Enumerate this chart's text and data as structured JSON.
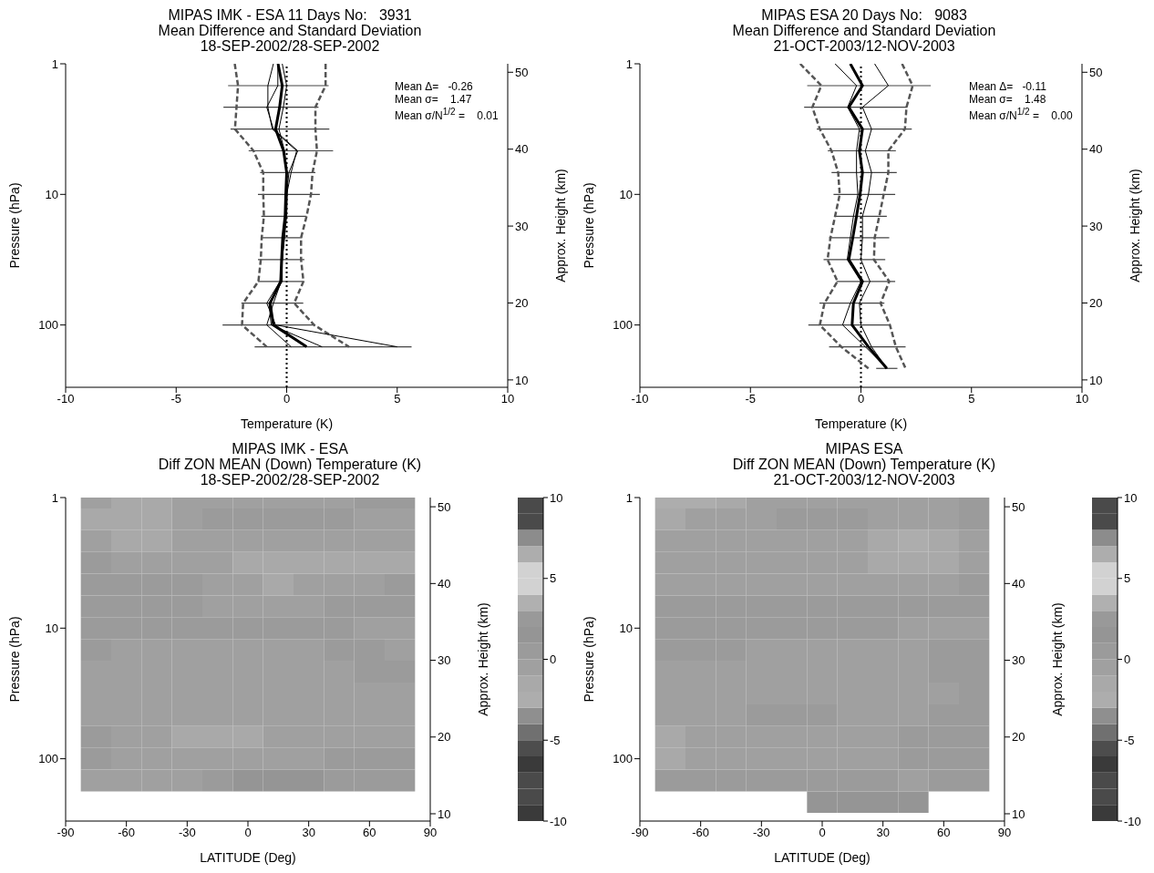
{
  "chart_data": [
    {
      "type": "line",
      "title": "MIPAS IMK - ESA 11 Days No:   3931",
      "subtitle": "Mean Difference and Standard Deviation\n18-SEP-2002/28-SEP-2002",
      "xlabel": "Temperature (K)",
      "ylabel": "Pressure (hPa)",
      "y2label": "Approx. Height (km)",
      "xlim": [
        -10,
        10
      ],
      "xticks": [
        -10,
        -5,
        0,
        5,
        10
      ],
      "ylim": [
        300,
        1
      ],
      "yticks": [
        1,
        10,
        100
      ],
      "log": "y",
      "y2lim": [
        9.04,
        51.1
      ],
      "y2ticks": [
        10,
        20,
        30,
        40,
        50
      ],
      "ref_lines": [
        {
          "axis": "x",
          "value": 0,
          "line_style": "dotted",
          "color": "#000000"
        }
      ],
      "annotations": [
        "Mean Δ=   -0.26",
        "Mean σ=    1.47",
        "Mean σ/N$^{1/2}$ =    0.01"
      ],
      "series": [
        {
          "color": "#000000",
          "x": [
            -0.39,
            -0.2,
            -0.32,
            -0.5,
            -0.14,
            0,
            -0.04,
            -0.07,
            -0.18,
            -0.23,
            -0.27,
            -0.75,
            -0.6,
            0.9
          ],
          "values": [
            1,
            1.47,
            2.15,
            3.16,
            4.64,
            6.81,
            10,
            14.7,
            21.5,
            31.6,
            46.4,
            68.1,
            100,
            147
          ],
          "xerrors": [
            null,
            [
              -2.65,
              1.9
            ],
            [
              -2.86,
              1.44
            ],
            [
              -2.54,
              1.93
            ],
            [
              -1.72,
              2.1
            ],
            [
              -1.2,
              1.3
            ],
            [
              -1.3,
              1.5
            ],
            [
              -1.15,
              0.9
            ],
            [
              -1.15,
              0.7
            ],
            [
              -1.3,
              0.8
            ],
            [
              -1.3,
              0.75
            ],
            [
              -2.05,
              0.75
            ],
            [
              -2.9,
              1.3
            ],
            [
              -1.45,
              5.65
            ]
          ]
        },
        {
          "color": "#555555",
          "line_style": "dashed",
          "x": [
            -2.35,
            -2.2,
            -2.27,
            -2.34,
            -1.5,
            -1.06,
            -1.06,
            -1.03,
            -1.13,
            -1.17,
            -1.28,
            -1.97,
            -2.02,
            -0.9
          ],
          "values": [
            1,
            1.47,
            2.15,
            3.16,
            4.64,
            6.81,
            10,
            14.7,
            21.5,
            31.6,
            46.4,
            68.1,
            100,
            147
          ]
        },
        {
          "color": "#555555",
          "line_style": "dashed",
          "x": [
            1.76,
            1.76,
            1.3,
            1.3,
            1.37,
            1.17,
            1.1,
            0.9,
            0.65,
            0.65,
            0.76,
            0.34,
            1.24,
            2.82
          ],
          "values": [
            1,
            1.47,
            2.15,
            3.16,
            4.64,
            6.81,
            10,
            14.7,
            21.5,
            31.6,
            46.4,
            68.1,
            100,
            147
          ]
        },
        {
          "color": "#000000",
          "x": [
            -0.4,
            -0.4,
            -0.9,
            -0.6,
            0.5,
            0.1,
            0,
            -0.05,
            -0.1,
            -0.2,
            -0.3,
            -0.9,
            -0.5,
            5.0
          ],
          "values": [
            1,
            1.47,
            2.15,
            3.16,
            4.64,
            6.81,
            10,
            14.7,
            21.5,
            31.6,
            46.4,
            68.1,
            100,
            147
          ]
        },
        {
          "color": "#000000",
          "x": [
            -0.6,
            -0.85,
            -0.85,
            -0.65,
            0.45,
            0.2,
            0,
            -0.05,
            -0.15,
            -0.2,
            -0.25,
            -0.6,
            -0.9,
            0.2
          ],
          "values": [
            1,
            1.47,
            2.15,
            3.16,
            4.64,
            6.81,
            10,
            14.7,
            21.5,
            31.6,
            46.4,
            68.1,
            100,
            147
          ]
        },
        {
          "color": "#000000",
          "x": [
            -0.2,
            0,
            -0.15,
            -0.35,
            -0.1,
            0,
            0.03,
            0,
            -0.1,
            -0.2,
            -0.2,
            -0.8,
            -0.7,
            1.6
          ],
          "values": [
            1,
            1.47,
            2.15,
            3.16,
            4.64,
            6.81,
            10,
            14.7,
            21.5,
            31.6,
            46.4,
            68.1,
            100,
            147
          ]
        }
      ]
    },
    {
      "type": "line",
      "title": "MIPAS ESA 20 Days No:   9083",
      "subtitle": "Mean Difference and Standard Deviation\n21-OCT-2003/12-NOV-2003",
      "xlabel": "Temperature (K)",
      "ylabel": "Pressure (hPa)",
      "y2label": "Approx. Height (km)",
      "xlim": [
        -10,
        10
      ],
      "xticks": [
        -10,
        -5,
        0,
        5,
        10
      ],
      "ylim": [
        300,
        1
      ],
      "yticks": [
        1,
        10,
        100
      ],
      "log": "y",
      "y2lim": [
        9.04,
        51.1
      ],
      "y2ticks": [
        10,
        20,
        30,
        40,
        50
      ],
      "ref_lines": [
        {
          "axis": "x",
          "value": 0,
          "line_style": "dotted",
          "color": "#000000"
        }
      ],
      "annotations": [
        "Mean Δ=   -0.11",
        "Mean σ=    1.48",
        "Mean σ/N$^{1/2}$ =    0.00"
      ],
      "series": [
        {
          "color": "#000000",
          "x": [
            -0.48,
            0.07,
            -0.55,
            0.07,
            -0.07,
            0.07,
            -0.04,
            -0.2,
            -0.37,
            -0.55,
            0.07,
            -0.34,
            -0.4,
            0.34,
            1.17
          ],
          "values": [
            1,
            1.47,
            2.15,
            3.16,
            4.64,
            6.81,
            10,
            14.7,
            21.5,
            31.6,
            46.4,
            68.1,
            100,
            147,
            215
          ],
          "xerrors": [
            null,
            [
              -2.43,
              3.16
            ],
            [
              -2.57,
              2.1
            ],
            [
              -2.0,
              2.3
            ],
            [
              -1.5,
              1.58
            ],
            [
              -1.33,
              1.62
            ],
            [
              -1.24,
              1.55
            ],
            [
              -1.2,
              1.17
            ],
            [
              -1.44,
              1.28
            ],
            [
              -1.69,
              1.1
            ],
            [
              -1.1,
              1.55
            ],
            [
              -1.88,
              1.06
            ],
            [
              -2.38,
              1.33
            ],
            [
              -1.44,
              2.02
            ],
            [
              0.69,
              1.65
            ]
          ]
        },
        {
          "color": "#555555",
          "line_style": "dashed",
          "x": [
            -2.75,
            -1.79,
            -2.2,
            -1.86,
            -1.33,
            -1.03,
            -0.96,
            -1.17,
            -1.38,
            -1.51,
            -1.06,
            -1.65,
            -1.86,
            -0.89,
            0.34
          ],
          "values": [
            1,
            1.47,
            2.15,
            3.16,
            4.64,
            6.81,
            10,
            14.7,
            21.5,
            31.6,
            46.4,
            68.1,
            100,
            147,
            215
          ]
        },
        {
          "color": "#555555",
          "line_style": "dashed",
          "x": [
            1.86,
            2.34,
            2.06,
            1.99,
            1.24,
            1.24,
            1.03,
            0.83,
            0.62,
            0.59,
            1.28,
            0.89,
            1.31,
            1.58,
            2.02
          ],
          "values": [
            1,
            1.47,
            2.15,
            3.16,
            4.64,
            6.81,
            10,
            14.7,
            21.5,
            31.6,
            46.4,
            68.1,
            100,
            147,
            215
          ]
        },
        {
          "color": "#000000",
          "x": [
            0.62,
            1.24,
            0.07,
            0.48,
            0.2,
            0.48,
            0.34,
            0.07,
            0.07,
            0,
            0.41,
            -0.07,
            0,
            0.48,
            1.17
          ],
          "values": [
            1,
            1.47,
            2.15,
            3.16,
            4.64,
            6.81,
            10,
            14.7,
            21.5,
            31.6,
            46.4,
            68.1,
            100,
            147,
            215
          ]
        },
        {
          "color": "#000000",
          "x": [
            -1.17,
            -0.2,
            -0.6,
            -0.07,
            -0.2,
            -0.2,
            -0.14,
            -0.34,
            -0.48,
            -0.62,
            0,
            -0.48,
            -0.83,
            0.2,
            1.17
          ],
          "values": [
            1,
            1.47,
            2.15,
            3.16,
            4.64,
            6.81,
            10,
            14.7,
            21.5,
            31.6,
            46.4,
            68.1,
            100,
            147,
            215
          ]
        }
      ]
    },
    {
      "type": "heatmap",
      "title": "MIPAS IMK - ESA",
      "subtitle": "Diff ZON MEAN (Down) Temperature (K)\n18-SEP-2002/28-SEP-2002",
      "xlabel": "LATITUDE (Deg)",
      "ylabel": "Pressure (hPa)",
      "y2label": "Approx. Height (km)",
      "xlim": [
        -90,
        90
      ],
      "xticks": [
        -90,
        -60,
        -30,
        0,
        30,
        60,
        90
      ],
      "ylim": [
        300,
        1
      ],
      "yticks": [
        1,
        10,
        100
      ],
      "log": "y",
      "y2lim": [
        9.05,
        51.2
      ],
      "y2ticks": [
        10,
        20,
        30,
        40,
        50
      ],
      "clim": [
        -10,
        10
      ],
      "cticks": [
        -10,
        -5,
        0,
        5,
        10
      ],
      "colors": [
        "#3a3a3a",
        "#4a4a4a",
        "#4a4a4a",
        "#3a3a3a",
        "#4d4d4d",
        "#707070",
        "#8f8f8f",
        "#adadad",
        "#a9a9a9",
        "#a0a0a0",
        "#9b9b9b",
        "#959595",
        "#999999",
        "#b0b0b0",
        "#d2d2d2",
        "#d2d2d2",
        "#adadad",
        "#8c8c8c",
        "#4a4a4a",
        "#4a4a4a"
      ],
      "x": [
        -75,
        -60,
        -45,
        -30,
        -15,
        0,
        15,
        30,
        45,
        60,
        75
      ],
      "y": [
        1,
        1.47,
        2.15,
        3.16,
        4.64,
        6.81,
        10,
        14.7,
        21.5,
        31.6,
        46.4,
        68.1,
        100,
        147
      ],
      "cells": [
        [
          -0.5,
          -1.2,
          -1.2,
          -0.5,
          -0.5,
          -0.5,
          -0.5,
          -0.5,
          -0.5,
          0.5,
          0.5
        ],
        [
          -1.2,
          -1.2,
          -1.2,
          -0.5,
          0.5,
          0.5,
          0.5,
          0.5,
          0.5,
          -0.5,
          -0.5
        ],
        [
          -0.5,
          -1.2,
          -1.2,
          -0.5,
          -0.5,
          -0.5,
          -0.5,
          -0.5,
          -0.5,
          -0.5,
          -0.5
        ],
        [
          0.5,
          -0.5,
          -0.5,
          -0.5,
          -0.5,
          -1.2,
          -1.2,
          -1.2,
          -1.2,
          -1.2,
          -1.2
        ],
        [
          0.5,
          0.5,
          0.5,
          0.5,
          -0.5,
          -0.5,
          -1.2,
          -0.5,
          -0.5,
          -0.5,
          0.5
        ],
        [
          0.5,
          0.5,
          0.5,
          0.5,
          -0.5,
          -0.5,
          -0.5,
          -0.5,
          0.5,
          0.5,
          0.5
        ],
        [
          0.5,
          0.5,
          0.5,
          0.5,
          0.5,
          0.5,
          0.5,
          0.5,
          0.5,
          -0.5,
          -0.5
        ],
        [
          0.5,
          -0.5,
          -0.5,
          -0.5,
          -0.5,
          -0.5,
          -0.5,
          -0.5,
          0.5,
          0.5,
          -0.5
        ],
        [
          -0.5,
          -0.5,
          -0.5,
          -0.5,
          -0.5,
          -0.5,
          -0.5,
          -0.5,
          -0.5,
          0.5,
          0.5
        ],
        [
          -0.5,
          -0.5,
          -0.5,
          -0.5,
          -0.5,
          -0.5,
          -0.5,
          -0.5,
          -0.5,
          -0.5,
          -0.5
        ],
        [
          -0.5,
          -0.5,
          -0.5,
          -0.5,
          -0.5,
          -0.5,
          -0.5,
          -0.5,
          -0.5,
          -0.5,
          -0.5
        ],
        [
          0.5,
          -0.5,
          -0.5,
          -1.2,
          -1.2,
          -1.2,
          -0.5,
          -0.5,
          -0.5,
          -0.5,
          -0.5
        ],
        [
          0.5,
          -0.5,
          -0.5,
          -0.5,
          -0.5,
          -0.5,
          -0.5,
          -0.5,
          0.5,
          0.5,
          0.5
        ],
        [
          -0.5,
          -0.5,
          -0.5,
          -0.5,
          0.5,
          1.5,
          1.5,
          1.5,
          0.5,
          0.5,
          0.5
        ]
      ]
    },
    {
      "type": "heatmap",
      "title": "MIPAS ESA",
      "subtitle": "Diff ZON MEAN (Down) Temperature (K)\n21-OCT-2003/12-NOV-2003",
      "xlabel": "LATITUDE (Deg)",
      "ylabel": "Pressure (hPa)",
      "y2label": "Approx. Height (km)",
      "xlim": [
        -90,
        90
      ],
      "xticks": [
        -90,
        -60,
        -30,
        0,
        30,
        60,
        90
      ],
      "ylim": [
        300,
        1
      ],
      "yticks": [
        1,
        10,
        100
      ],
      "log": "y",
      "y2lim": [
        9.05,
        51.2
      ],
      "y2ticks": [
        10,
        20,
        30,
        40,
        50
      ],
      "clim": [
        -10,
        10
      ],
      "cticks": [
        -10,
        -5,
        0,
        5,
        10
      ],
      "colors": [
        "#3a3a3a",
        "#4a4a4a",
        "#4a4a4a",
        "#3a3a3a",
        "#4d4d4d",
        "#707070",
        "#8f8f8f",
        "#adadad",
        "#a9a9a9",
        "#a0a0a0",
        "#9b9b9b",
        "#959595",
        "#999999",
        "#b0b0b0",
        "#d2d2d2",
        "#d2d2d2",
        "#adadad",
        "#8c8c8c",
        "#4a4a4a",
        "#4a4a4a"
      ],
      "x": [
        -75,
        -60,
        -45,
        -30,
        -15,
        0,
        15,
        30,
        45,
        60,
        75
      ],
      "y": [
        1,
        1.47,
        2.15,
        3.16,
        4.64,
        6.81,
        10,
        14.7,
        21.5,
        31.6,
        46.4,
        68.1,
        100,
        147,
        215
      ],
      "cells": [
        [
          -2.5,
          -2.5,
          -1.5,
          -0.5,
          -0.5,
          -0.5,
          -0.5,
          -0.5,
          -0.5,
          -0.5,
          0.5
        ],
        [
          -1.5,
          -0.5,
          -0.5,
          -0.5,
          0.5,
          0.5,
          0.5,
          -0.5,
          -0.5,
          -0.5,
          0.5
        ],
        [
          -0.5,
          -0.5,
          -0.5,
          -0.5,
          -0.5,
          -0.5,
          -0.5,
          -1.5,
          -2.5,
          -1.5,
          -0.5
        ],
        [
          -0.5,
          -0.5,
          -0.5,
          -0.5,
          -0.5,
          -0.5,
          -0.5,
          -1.5,
          -1.5,
          -1.5,
          -0.5
        ],
        [
          -0.5,
          -0.5,
          -0.5,
          -0.5,
          -0.5,
          -0.5,
          -0.5,
          -0.5,
          -0.5,
          -0.5,
          0.5
        ],
        [
          0.5,
          0.5,
          0.5,
          0.5,
          0.5,
          0.5,
          0.5,
          0.5,
          0.5,
          0.5,
          0.5
        ],
        [
          0.5,
          0.5,
          0.5,
          0.5,
          0.5,
          0.5,
          0.5,
          0.5,
          -0.5,
          -0.5,
          -0.5
        ],
        [
          0.5,
          0.5,
          0.5,
          -0.5,
          -0.5,
          -0.5,
          -0.5,
          -0.5,
          -0.5,
          0.5,
          0.5
        ],
        [
          -0.5,
          -0.5,
          -0.5,
          -0.5,
          -0.5,
          -0.5,
          -0.5,
          -0.5,
          -0.5,
          0.5,
          0.5
        ],
        [
          -0.5,
          -0.5,
          -0.5,
          -0.5,
          -0.5,
          -0.5,
          -0.5,
          -0.5,
          -0.5,
          -0.5,
          0.5
        ],
        [
          -0.5,
          -0.5,
          -0.5,
          0.5,
          0.5,
          0.5,
          -0.5,
          -0.5,
          -0.5,
          0.5,
          0.5
        ],
        [
          -1.5,
          -0.5,
          -0.5,
          -0.5,
          -0.5,
          -0.5,
          -0.5,
          -0.5,
          0.5,
          0.5,
          0.5
        ],
        [
          -1.5,
          -0.5,
          -0.5,
          -0.5,
          -0.5,
          -0.5,
          -0.5,
          -0.5,
          0.5,
          0.5,
          0.5
        ],
        [
          0.5,
          0.5,
          0.5,
          0.5,
          0.5,
          0.5,
          0.5,
          0.5,
          -0.5,
          0.5,
          0.5
        ],
        [
          null,
          null,
          null,
          null,
          null,
          1.5,
          1.5,
          1.5,
          1.5,
          null,
          null
        ]
      ]
    }
  ]
}
